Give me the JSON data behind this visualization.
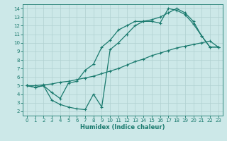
{
  "bg_color": "#cce8e8",
  "grid_color": "#b0d0d0",
  "line_color": "#1a7a6e",
  "line_width": 0.9,
  "marker": "+",
  "marker_size": 3.5,
  "marker_edge_width": 0.8,
  "xlabel": "Humidex (Indice chaleur)",
  "xlim": [
    -0.5,
    23.5
  ],
  "ylim": [
    1.5,
    14.5
  ],
  "xticks": [
    0,
    1,
    2,
    3,
    4,
    5,
    6,
    7,
    8,
    9,
    10,
    11,
    12,
    13,
    14,
    15,
    16,
    17,
    18,
    19,
    20,
    21,
    22,
    23
  ],
  "yticks": [
    2,
    3,
    4,
    5,
    6,
    7,
    8,
    9,
    10,
    11,
    12,
    13,
    14
  ],
  "tick_labelsize": 5.0,
  "xlabel_fontsize": 6.0,
  "line1_x": [
    0,
    1,
    2,
    3,
    4,
    5,
    6,
    7,
    8,
    9,
    10,
    11,
    12,
    13,
    14,
    15,
    16,
    17,
    18,
    19,
    20,
    21,
    22,
    23
  ],
  "line1_y": [
    5.0,
    4.8,
    5.0,
    4.2,
    3.5,
    5.3,
    5.5,
    6.8,
    7.5,
    9.5,
    10.3,
    11.5,
    12.0,
    12.5,
    12.5,
    12.5,
    12.3,
    14.0,
    13.8,
    13.3,
    12.2,
    10.8,
    9.5,
    9.5
  ],
  "line2_x": [
    0,
    1,
    2,
    3,
    4,
    5,
    6,
    7,
    8,
    9,
    10,
    11,
    12,
    13,
    14,
    15,
    16,
    17,
    18,
    19,
    20,
    21,
    22,
    23
  ],
  "line2_y": [
    5.0,
    4.8,
    5.0,
    3.3,
    2.8,
    2.5,
    2.3,
    2.2,
    4.0,
    2.5,
    9.2,
    10.0,
    11.0,
    12.0,
    12.5,
    12.7,
    13.0,
    13.5,
    14.0,
    13.5,
    12.5,
    10.8,
    9.5,
    9.5
  ],
  "line3_x": [
    0,
    1,
    2,
    3,
    4,
    5,
    6,
    7,
    8,
    9,
    10,
    11,
    12,
    13,
    14,
    15,
    16,
    17,
    18,
    19,
    20,
    21,
    22,
    23
  ],
  "line3_y": [
    5.0,
    5.0,
    5.1,
    5.2,
    5.4,
    5.5,
    5.7,
    5.9,
    6.1,
    6.4,
    6.7,
    7.0,
    7.4,
    7.8,
    8.1,
    8.5,
    8.8,
    9.1,
    9.4,
    9.6,
    9.8,
    10.0,
    10.2,
    9.5
  ]
}
